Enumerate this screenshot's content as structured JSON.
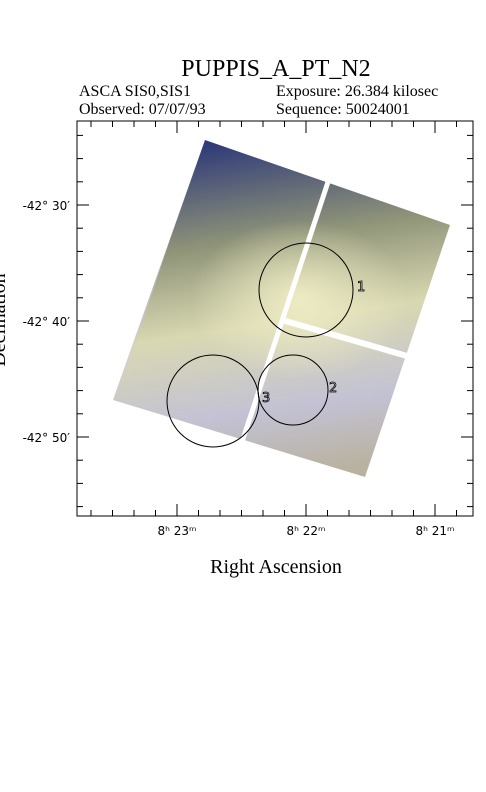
{
  "header": {
    "title": "PUPPIS_A_PT_N2",
    "instrument": "ASCA SIS0,SIS1",
    "exposure": "Exposure: 26.384 kilosec",
    "observed": "Observed: 07/07/93",
    "sequence": "Sequence: 50024001"
  },
  "axes": {
    "x_label": "Right Ascension",
    "y_label": "Declination",
    "x_ticks": [
      "8ʰ 23ᵐ",
      "8ʰ 22ᵐ",
      "8ʰ 21ᵐ"
    ],
    "y_ticks": [
      "-42° 30′",
      "-42° 40′",
      "-42° 50′"
    ]
  },
  "regions": [
    {
      "label": "1"
    },
    {
      "label": "2"
    },
    {
      "label": "3"
    }
  ]
}
